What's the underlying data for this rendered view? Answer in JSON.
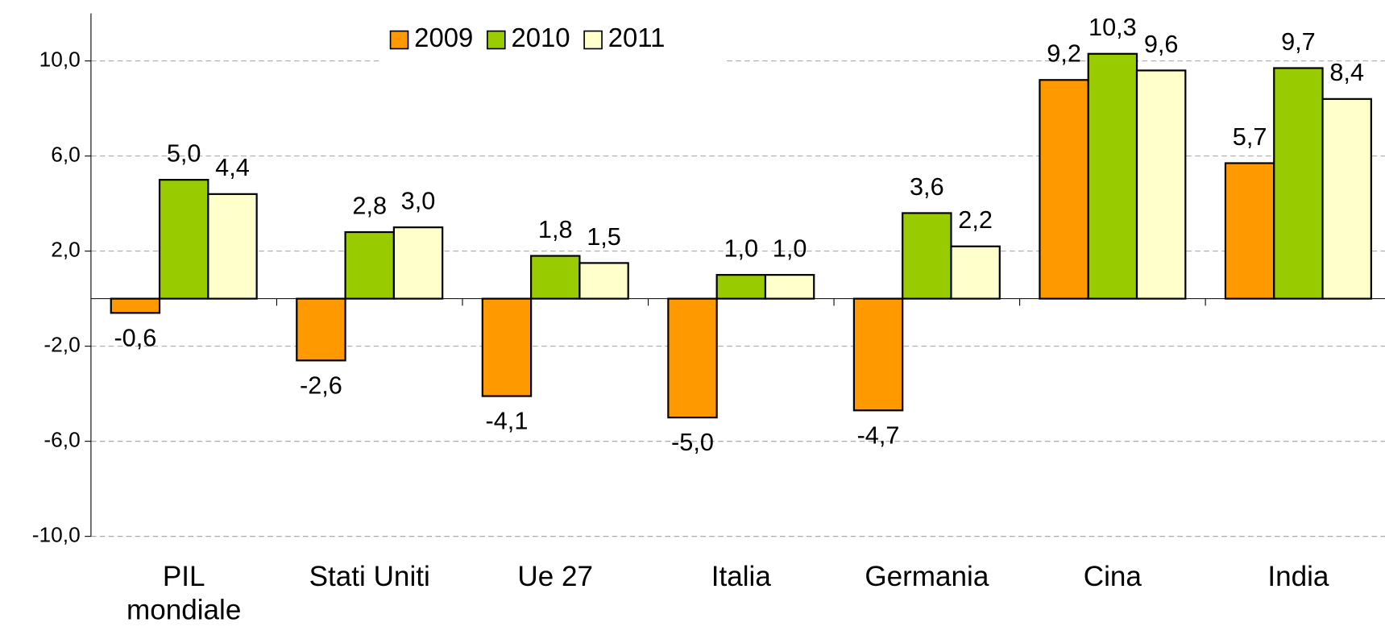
{
  "chart_data": {
    "type": "bar",
    "categories": [
      "PIL mondiale",
      "Stati Uniti",
      "Ue 27",
      "Italia",
      "Germania",
      "Cina",
      "India"
    ],
    "series": [
      {
        "name": "2009",
        "color": "#ff9900",
        "values": [
          -0.6,
          -2.6,
          -4.1,
          -5.0,
          -4.7,
          9.2,
          5.7
        ],
        "value_labels": [
          "-0,6",
          "-2,6",
          "-4,1",
          "-5,0",
          "-4,7",
          "9,2",
          "5,7"
        ]
      },
      {
        "name": "2010",
        "color": "#99cc00",
        "values": [
          5.0,
          2.8,
          1.8,
          1.0,
          3.6,
          10.3,
          9.7
        ],
        "value_labels": [
          "5,0",
          "2,8",
          "1,8",
          "1,0",
          "3,6",
          "10,3",
          "9,7"
        ]
      },
      {
        "name": "2011",
        "color": "#ffffcc",
        "values": [
          4.4,
          3.0,
          1.5,
          1.0,
          2.2,
          9.6,
          8.4
        ],
        "value_labels": [
          "4,4",
          "3,0",
          "1,5",
          "1,0",
          "2,2",
          "9,6",
          "8,4"
        ]
      }
    ],
    "ylim": [
      -10,
      12
    ],
    "yticks": [
      {
        "value": -10,
        "label": "-10,0"
      },
      {
        "value": -6,
        "label": "-6,0"
      },
      {
        "value": -2,
        "label": "-2,0"
      },
      {
        "value": 2,
        "label": "2,0"
      },
      {
        "value": 6,
        "label": "6,0"
      },
      {
        "value": 10,
        "label": "10,0"
      }
    ],
    "grid": true,
    "legend": "top"
  }
}
